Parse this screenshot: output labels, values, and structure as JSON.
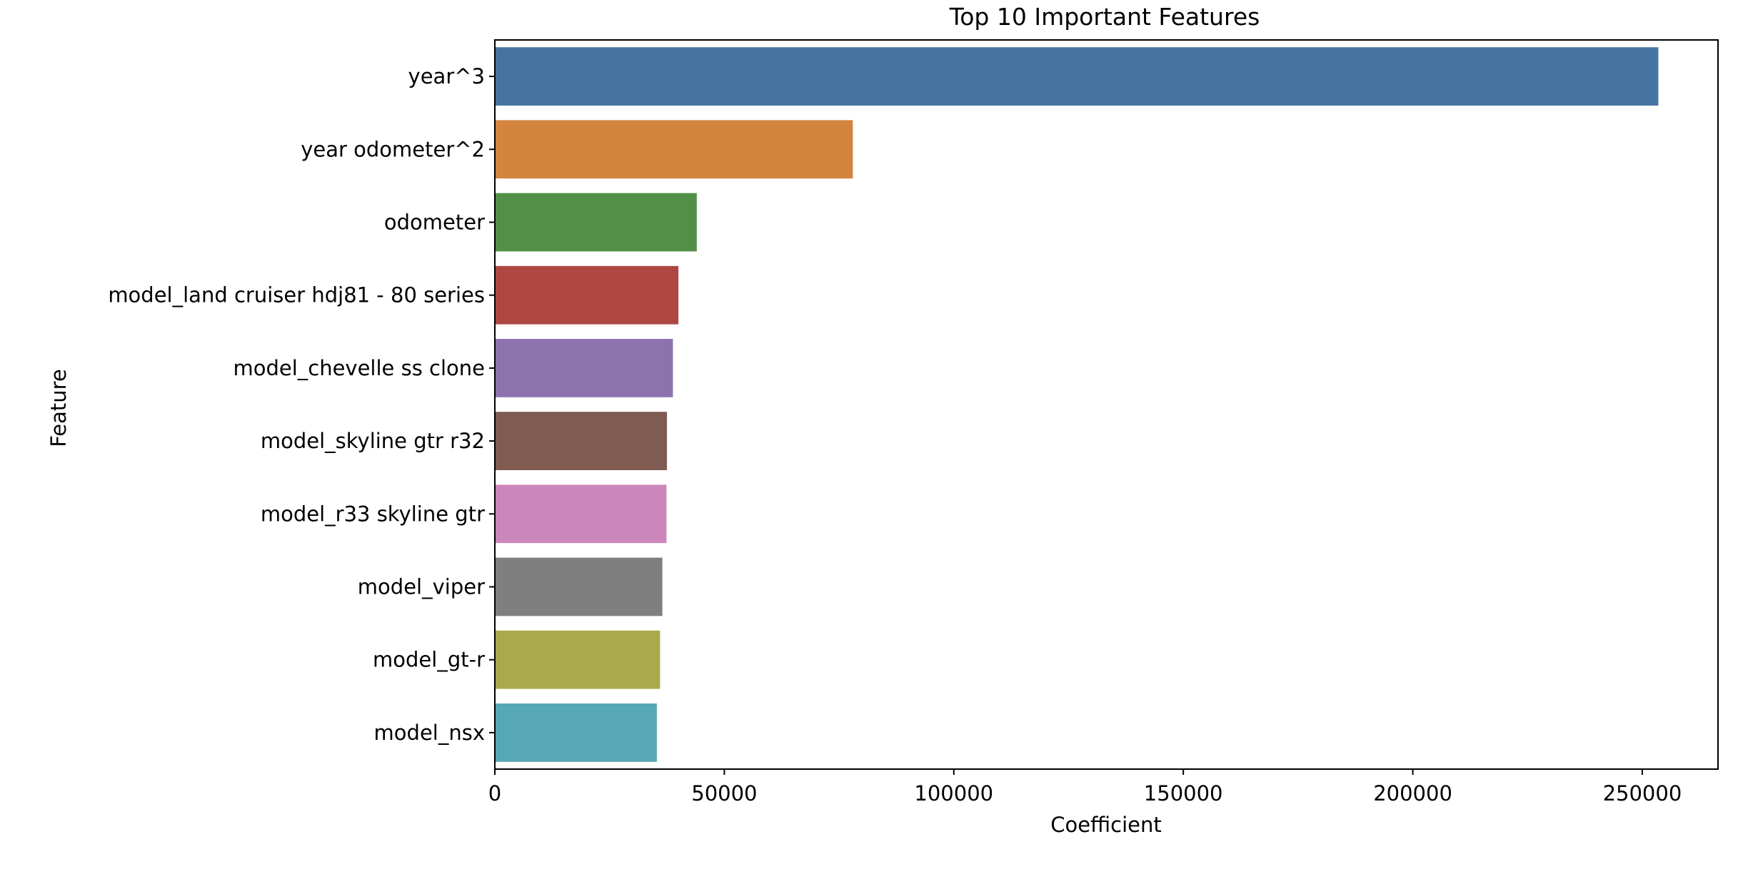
{
  "chart_data": {
    "type": "bar",
    "orientation": "horizontal",
    "title": "Top 10 Important Features",
    "xlabel": "Coefficient",
    "ylabel": "Feature",
    "xlim": [
      0,
      266500
    ],
    "x_ticks": [
      0,
      50000,
      100000,
      150000,
      200000,
      250000
    ],
    "grid": false,
    "legend": "none",
    "categories": [
      "year^3",
      "year odometer^2",
      "odometer",
      "model_land cruiser hdj81 - 80 series",
      "model_chevelle ss clone",
      "model_skyline gtr r32",
      "model_r33 skyline gtr",
      "model_viper",
      "model_gt-r",
      "model_nsx"
    ],
    "values": [
      253500,
      78000,
      44000,
      40000,
      38800,
      37500,
      37400,
      36500,
      36000,
      35300
    ],
    "colors": [
      "#4574a0",
      "#d3843e",
      "#528f47",
      "#ae4742",
      "#8c73ae",
      "#7f5b51",
      "#cb86bc",
      "#7f7f7f",
      "#a9aa4b",
      "#56a8b4"
    ]
  }
}
